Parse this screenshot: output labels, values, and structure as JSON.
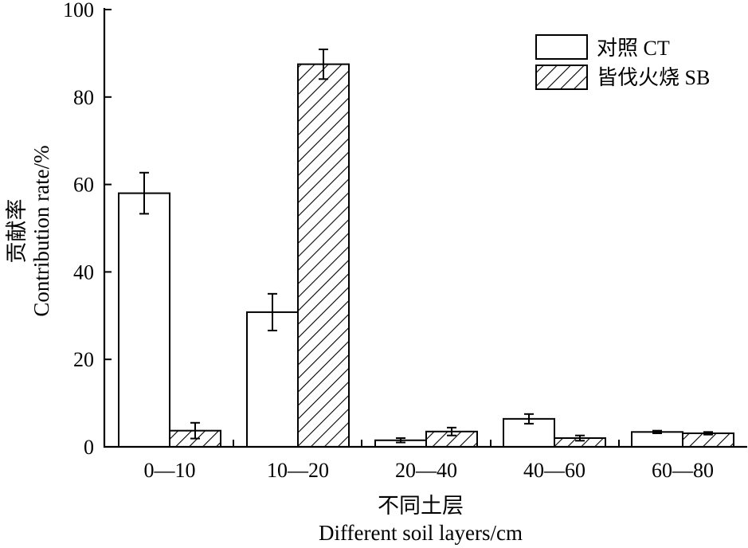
{
  "chart_data": {
    "type": "bar",
    "categories": [
      "0—10",
      "10—20",
      "20—40",
      "40—60",
      "60—80"
    ],
    "series": [
      {
        "name": "对照 CT",
        "values": [
          58.0,
          30.8,
          1.5,
          6.4,
          3.4
        ],
        "errors": [
          4.7,
          4.2,
          0.5,
          1.1,
          0.3
        ],
        "pattern": "none"
      },
      {
        "name": "皆伐火烧 SB",
        "values": [
          3.7,
          87.5,
          3.5,
          2.0,
          3.1
        ],
        "errors": [
          1.8,
          3.4,
          0.9,
          0.6,
          0.3
        ],
        "pattern": "hatch"
      }
    ],
    "ylim": [
      0,
      100
    ],
    "yticks": [
      0,
      20,
      40,
      60,
      80,
      100
    ],
    "ylabel_cn": "贡献率",
    "ylabel_en": "Contribution rate/%",
    "xlabel_cn": "不同土层",
    "xlabel_en": "Different soil layers/cm",
    "grid": false,
    "legend_position": "top-right"
  }
}
